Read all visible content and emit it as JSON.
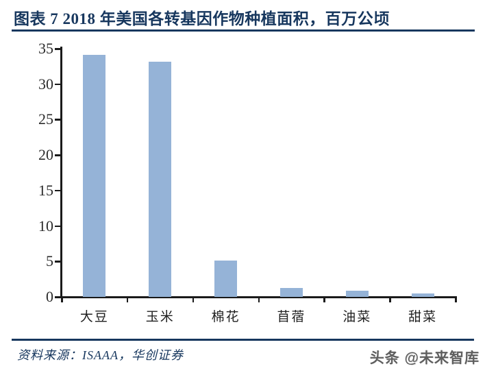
{
  "title": "图表 7  2018 年美国各转基因作物种植面积，百万公顷",
  "chart_data": {
    "type": "bar",
    "title": "2018 年美国各转基因作物种植面积",
    "ylabel": "百万公顷",
    "categories": [
      "大豆",
      "玉米",
      "棉花",
      "苜蓿",
      "油菜",
      "甜菜"
    ],
    "values": [
      34.1,
      33.2,
      5.1,
      1.3,
      0.9,
      0.5
    ],
    "ylim": [
      0,
      35
    ],
    "ytick_step": 5,
    "grid": false,
    "legend": false,
    "bar_color": "#95B3D7"
  },
  "footer": {
    "source_label": "资料来源：ISAAA，华创证券",
    "watermark": "头条 @未来智库"
  },
  "colors": {
    "accent_navy": "#17375E",
    "bar_fill": "#95B3D7",
    "axis": "#1a1a1a"
  }
}
